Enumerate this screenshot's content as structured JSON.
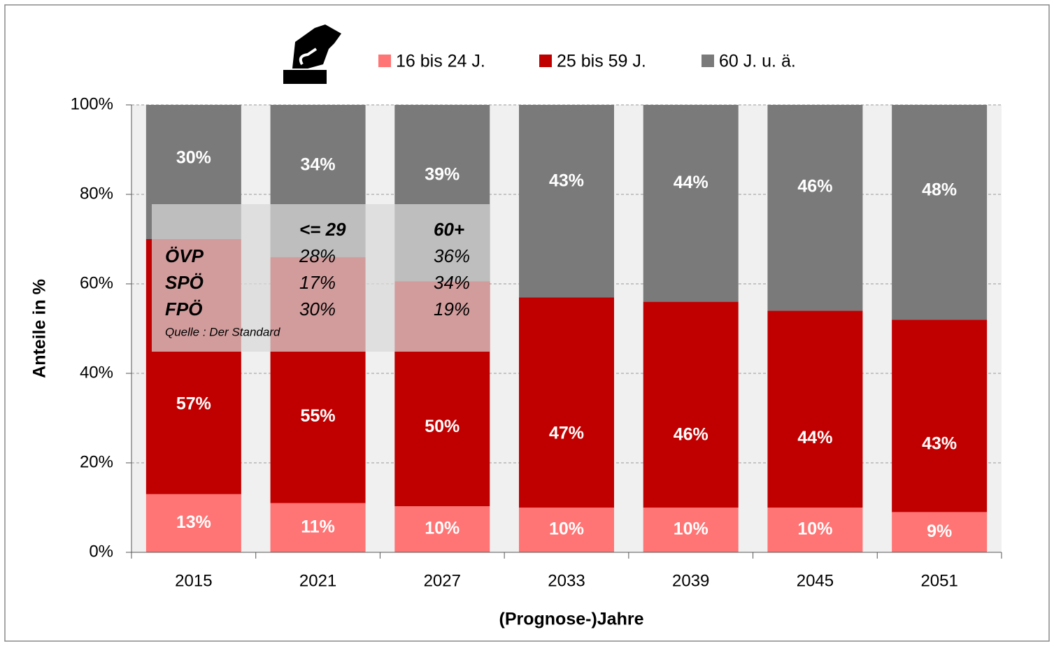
{
  "chart_data": {
    "type": "stacked_bar",
    "xlabel": "(Prognose-)Jahre",
    "ylabel": "Anteile in %",
    "categories": [
      "2015",
      "2021",
      "2027",
      "2033",
      "2039",
      "2045",
      "2051"
    ],
    "series": [
      {
        "name": "16 bis 24 J.",
        "color": "#ff7474",
        "values": [
          13,
          11,
          10.3,
          10,
          10,
          10,
          9
        ],
        "value_labels": [
          "13%",
          "11%",
          "10%",
          "10%",
          "10%",
          "10%",
          "9%"
        ]
      },
      {
        "name": "25 bis 59 J.",
        "color": "#c00000",
        "values": [
          57,
          55,
          50.3,
          47,
          46,
          44,
          43
        ],
        "value_labels": [
          "57%",
          "55%",
          "50%",
          "47%",
          "46%",
          "44%",
          "43%"
        ]
      },
      {
        "name": "60 J. u. ä.",
        "color": "#7a7a7a",
        "values": [
          30,
          34,
          39.4,
          43,
          44,
          46,
          48
        ],
        "value_labels": [
          "30%",
          "34%",
          "39%",
          "43%",
          "44%",
          "46%",
          "48%"
        ]
      }
    ],
    "ylim": [
      0,
      100
    ],
    "yticks": [
      {
        "value": 0,
        "label": "0%"
      },
      {
        "value": 20,
        "label": "20%"
      },
      {
        "value": 40,
        "label": "40%"
      },
      {
        "value": 60,
        "label": "60%"
      },
      {
        "value": 80,
        "label": "80%"
      },
      {
        "value": 100,
        "label": "100%"
      }
    ],
    "grid": true,
    "legend": "top",
    "annotation_table": {
      "header": [
        "<= 29",
        "60+"
      ],
      "rows": [
        [
          "ÖVP",
          "28%",
          "36%"
        ],
        [
          "SPÖ",
          "17%",
          "34%"
        ],
        [
          "FPÖ",
          "30%",
          "19%"
        ]
      ],
      "source": "Quelle : Der Standard"
    }
  }
}
